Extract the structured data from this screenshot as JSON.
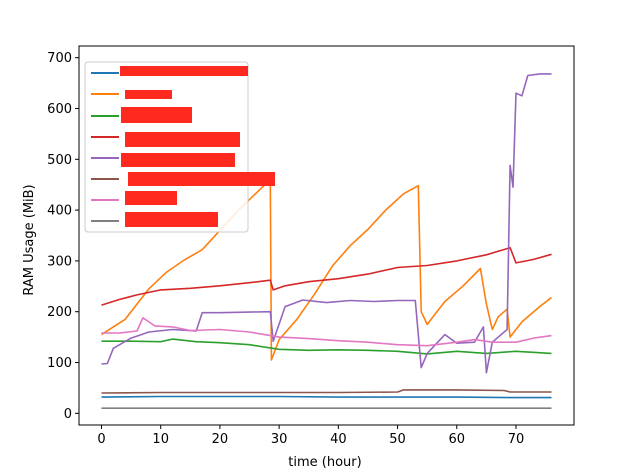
{
  "chart_data": {
    "type": "line",
    "title": "",
    "xlabel": "time (hour)",
    "ylabel": "RAM Usage (MiB)",
    "xlim": [
      -3.8,
      79.8
    ],
    "ylim": [
      -23,
      723
    ],
    "xticks": [
      0,
      10,
      20,
      30,
      40,
      50,
      60,
      70
    ],
    "yticks": [
      0,
      100,
      200,
      300,
      400,
      500,
      600,
      700
    ],
    "grid": false,
    "legend_position": "top-left",
    "series": [
      {
        "color": "#1f77b4",
        "points": [
          [
            0,
            32
          ],
          [
            10,
            33
          ],
          [
            20,
            33
          ],
          [
            30,
            33
          ],
          [
            40,
            32
          ],
          [
            50,
            32
          ],
          [
            60,
            32
          ],
          [
            70,
            31
          ],
          [
            76,
            31
          ]
        ]
      },
      {
        "color": "#ff7f0e",
        "points": [
          [
            0,
            155
          ],
          [
            4,
            185
          ],
          [
            8,
            245
          ],
          [
            11,
            278
          ],
          [
            14,
            302
          ],
          [
            17,
            322
          ],
          [
            20,
            360
          ],
          [
            23,
            398
          ],
          [
            26,
            432
          ],
          [
            28.5,
            460
          ],
          [
            28.7,
            105
          ],
          [
            30,
            145
          ],
          [
            33,
            185
          ],
          [
            36,
            235
          ],
          [
            39,
            290
          ],
          [
            42,
            330
          ],
          [
            45,
            362
          ],
          [
            48,
            400
          ],
          [
            51,
            432
          ],
          [
            53.5,
            448
          ],
          [
            54,
            200
          ],
          [
            55,
            175
          ],
          [
            58,
            220
          ],
          [
            61,
            250
          ],
          [
            64,
            285
          ],
          [
            65,
            215
          ],
          [
            66,
            165
          ],
          [
            67,
            190
          ],
          [
            68.5,
            205
          ],
          [
            69,
            150
          ],
          [
            71,
            180
          ],
          [
            74,
            210
          ],
          [
            76,
            228
          ]
        ]
      },
      {
        "color": "#2ca02c",
        "points": [
          [
            0,
            142
          ],
          [
            5,
            142
          ],
          [
            10,
            141
          ],
          [
            12,
            146
          ],
          [
            16,
            141
          ],
          [
            20,
            139
          ],
          [
            25,
            135
          ],
          [
            30,
            126
          ],
          [
            35,
            124
          ],
          [
            40,
            125
          ],
          [
            45,
            124
          ],
          [
            50,
            122
          ],
          [
            55,
            117
          ],
          [
            60,
            122
          ],
          [
            65,
            118
          ],
          [
            70,
            122
          ],
          [
            76,
            118
          ]
        ]
      },
      {
        "color": "#d62728",
        "points": [
          [
            0,
            213
          ],
          [
            3,
            224
          ],
          [
            6,
            233
          ],
          [
            10,
            243
          ],
          [
            15,
            246
          ],
          [
            20,
            251
          ],
          [
            25,
            257
          ],
          [
            28.5,
            262
          ],
          [
            29,
            243
          ],
          [
            31,
            251
          ],
          [
            35,
            259
          ],
          [
            40,
            265
          ],
          [
            45,
            274
          ],
          [
            50,
            287
          ],
          [
            55,
            291
          ],
          [
            60,
            300
          ],
          [
            65,
            312
          ],
          [
            69,
            326
          ],
          [
            70,
            296
          ],
          [
            73,
            303
          ],
          [
            76,
            313
          ]
        ]
      },
      {
        "color": "#9467bd",
        "points": [
          [
            0,
            97
          ],
          [
            1,
            98
          ],
          [
            2,
            128
          ],
          [
            5,
            148
          ],
          [
            8,
            160
          ],
          [
            12,
            165
          ],
          [
            16,
            162
          ],
          [
            17,
            198
          ],
          [
            20,
            198
          ],
          [
            24,
            199
          ],
          [
            28.5,
            200
          ],
          [
            29,
            142
          ],
          [
            31,
            210
          ],
          [
            34,
            223
          ],
          [
            38,
            218
          ],
          [
            42,
            222
          ],
          [
            46,
            220
          ],
          [
            50,
            222
          ],
          [
            53,
            222
          ],
          [
            54,
            90
          ],
          [
            55,
            118
          ],
          [
            58,
            155
          ],
          [
            60,
            138
          ],
          [
            63,
            140
          ],
          [
            64.5,
            170
          ],
          [
            65,
            80
          ],
          [
            66,
            140
          ],
          [
            68.5,
            165
          ],
          [
            69,
            488
          ],
          [
            69.5,
            445
          ],
          [
            70,
            630
          ],
          [
            71,
            625
          ],
          [
            72,
            665
          ],
          [
            74,
            668
          ],
          [
            76,
            668
          ]
        ]
      },
      {
        "color": "#8c564b",
        "points": [
          [
            0,
            40
          ],
          [
            10,
            41
          ],
          [
            20,
            41
          ],
          [
            30,
            41
          ],
          [
            40,
            41
          ],
          [
            50,
            42
          ],
          [
            51,
            46
          ],
          [
            60,
            46
          ],
          [
            68,
            45
          ],
          [
            69,
            42
          ],
          [
            76,
            42
          ]
        ]
      },
      {
        "color": "#e377c2",
        "points": [
          [
            0,
            158
          ],
          [
            3,
            158
          ],
          [
            6,
            162
          ],
          [
            7,
            188
          ],
          [
            9,
            172
          ],
          [
            12,
            170
          ],
          [
            15,
            163
          ],
          [
            20,
            165
          ],
          [
            25,
            160
          ],
          [
            29,
            152
          ],
          [
            30,
            150
          ],
          [
            35,
            147
          ],
          [
            40,
            143
          ],
          [
            45,
            140
          ],
          [
            50,
            135
          ],
          [
            55,
            133
          ],
          [
            60,
            140
          ],
          [
            63,
            145
          ],
          [
            66,
            140
          ],
          [
            70,
            140
          ],
          [
            73,
            148
          ],
          [
            76,
            153
          ]
        ]
      },
      {
        "color": "#7f7f7f",
        "points": [
          [
            0,
            10
          ],
          [
            10,
            10
          ],
          [
            20,
            10
          ],
          [
            30,
            10
          ],
          [
            40,
            10
          ],
          [
            50,
            10
          ],
          [
            60,
            10
          ],
          [
            70,
            10
          ],
          [
            76,
            10
          ]
        ]
      }
    ]
  }
}
